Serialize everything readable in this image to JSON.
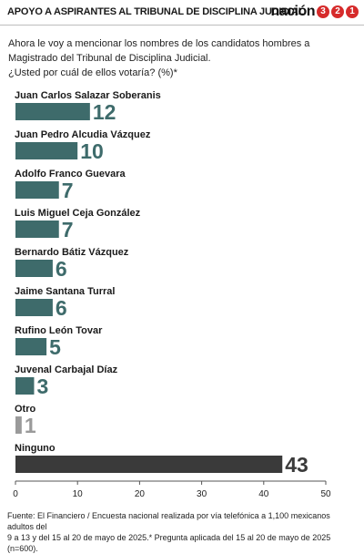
{
  "header": {
    "title": "APOYO A ASPIRANTES AL TRIBUNAL DE DISCIPLINA JUDICIAL",
    "logo_text": "nación321",
    "logo_word": "nación",
    "logo_digits": [
      "3",
      "2",
      "1"
    ],
    "logo_color": "#d62b2b"
  },
  "question": {
    "lines": [
      "Ahora le voy a mencionar los nombres de los candidatos hombres a",
      "Magistrado del Tribunal de Disciplina Judicial.",
      "¿Usted por cuál de ellos votaría? (%)*"
    ]
  },
  "chart_data": {
    "type": "bar",
    "orientation": "horizontal",
    "categories": [
      "Juan Carlos Salazar Soberanis",
      "Juan Pedro Alcudia Vázquez",
      "Adolfo Franco Guevara",
      "Luis Miguel Ceja González",
      "Bernardo Bátiz Vázquez",
      "Jaime Santana Turral",
      "Rufino León Tovar",
      "Juvenal Carbajal Díaz",
      "Otro",
      "Ninguno"
    ],
    "values": [
      12,
      10,
      7,
      7,
      6,
      6,
      5,
      3,
      1,
      43
    ],
    "bar_colors": [
      "#3e6b6b",
      "#3e6b6b",
      "#3e6b6b",
      "#3e6b6b",
      "#3e6b6b",
      "#3e6b6b",
      "#3e6b6b",
      "#3e6b6b",
      "#9a9a9a",
      "#3a3a3a"
    ],
    "label_colors": [
      "#3e6b6b",
      "#3e6b6b",
      "#3e6b6b",
      "#3e6b6b",
      "#3e6b6b",
      "#3e6b6b",
      "#3e6b6b",
      "#3e6b6b",
      "#9a9a9a",
      "#3a3a3a"
    ],
    "xlim": [
      0,
      50
    ],
    "xticks": [
      0,
      10,
      20,
      30,
      40,
      50
    ],
    "grid": false,
    "xlabel": "",
    "ylabel": ""
  },
  "footer": {
    "lines": [
      "Fuente: El Financiero / Encuesta nacional realizada por vía telefónica a 1,100 mexicanos adultos del",
      "9 a 13 y del 15 al 20 de mayo de 2025.* Pregunta aplicada del 15 al 20 de mayo de 2025 (n=600)."
    ]
  }
}
